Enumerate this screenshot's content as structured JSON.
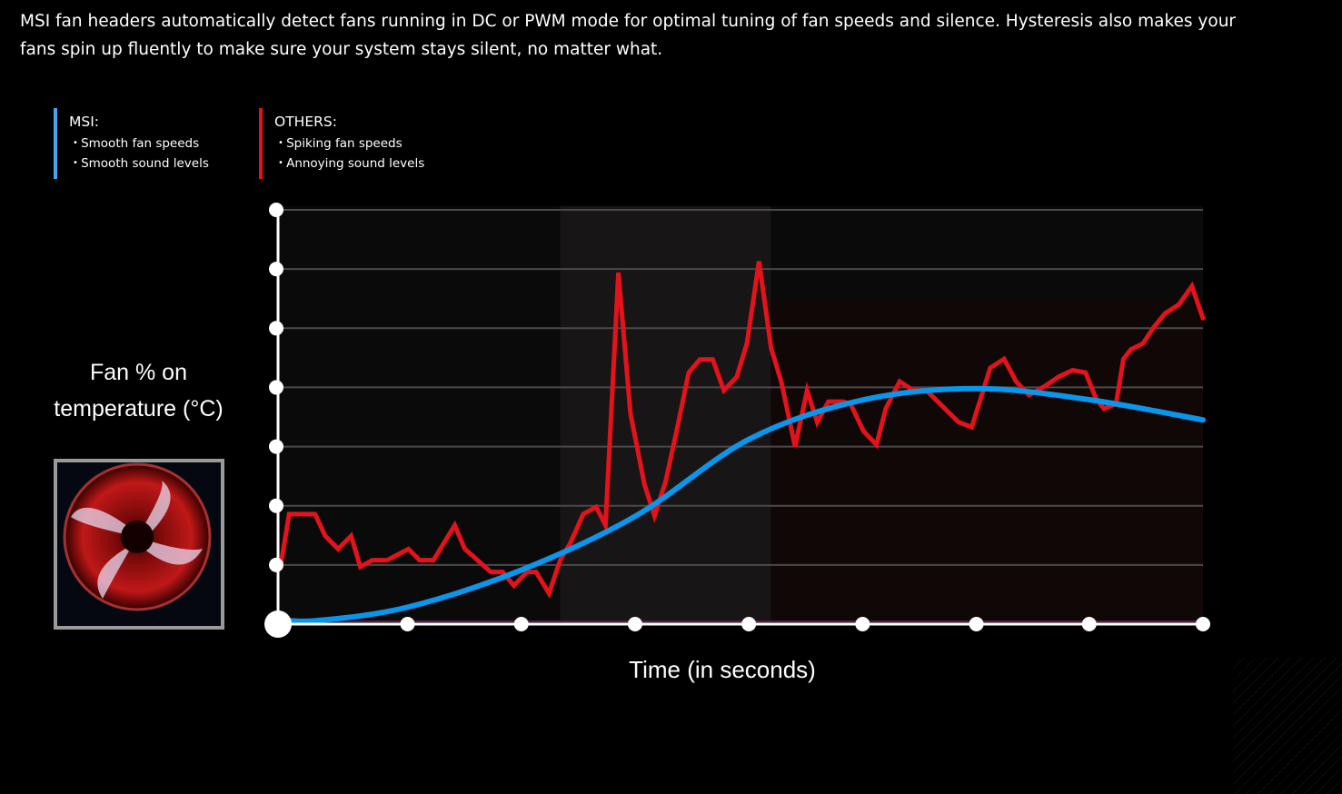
{
  "intro_text": "MSI fan headers automatically detect fans running in DC or PWM mode for optimal tuning of fan speeds and silence. Hysteresis also makes your fans spin up fluently to make sure your system stays silent, no matter what.",
  "legend": {
    "msi": {
      "title": "MSI:",
      "items": [
        "Smooth fan speeds",
        "Smooth sound levels"
      ],
      "color": "#4aa3f0"
    },
    "others": {
      "title": "OTHERS:",
      "items": [
        "Spiking fan speeds",
        "Annoying sound levels"
      ],
      "color": "#e3131b"
    }
  },
  "fan_image": "fan-icon",
  "chart_data": {
    "type": "line",
    "title": "",
    "xlabel": "Time (in seconds)",
    "ylabel": "Fan % on temperature (°C)",
    "xlim": [
      0,
      100
    ],
    "ylim": [
      0,
      7
    ],
    "grid": true,
    "x_ticks": [
      0,
      14,
      26.3,
      38.6,
      50.9,
      63.2,
      75.5,
      87.7,
      100
    ],
    "y_ticks": [
      0,
      1,
      2,
      3,
      4,
      5,
      6,
      7
    ],
    "highlight_band": [
      30.5,
      53.3
    ],
    "series": [
      {
        "name": "OTHERS",
        "color": "#e3131b",
        "x": [
          0.3,
          1.2,
          4.0,
          5.1,
          6.5,
          7.9,
          8.9,
          10.2,
          11.8,
          14.1,
          15.3,
          16.8,
          19.1,
          20.2,
          23.0,
          24.3,
          25.5,
          26.9,
          27.9,
          29.3,
          30.5,
          31.6,
          33.0,
          34.4,
          35.4,
          36.8,
          38.1,
          39.6,
          40.7,
          41.9,
          43.1,
          44.4,
          45.6,
          47.0,
          48.2,
          49.6,
          50.7,
          52.0,
          53.3,
          54.4,
          55.9,
          57.2,
          58.3,
          59.5,
          61.1,
          61.9,
          63.3,
          64.7,
          65.7,
          67.2,
          68.7,
          70.1,
          72.1,
          73.6,
          75.0,
          77.0,
          78.5,
          79.8,
          81.2,
          82.9,
          84.4,
          85.9,
          87.3,
          88.5,
          89.3,
          90.6,
          91.4,
          92.2,
          93.5,
          94.7,
          95.9,
          97.4,
          98.8,
          100
        ],
        "y": [
          1.0,
          1.86,
          1.86,
          1.49,
          1.27,
          1.49,
          0.97,
          1.08,
          1.08,
          1.27,
          1.08,
          1.08,
          1.67,
          1.27,
          0.88,
          0.88,
          0.65,
          0.88,
          0.88,
          0.52,
          1.08,
          1.37,
          1.86,
          1.98,
          1.67,
          5.94,
          3.56,
          2.37,
          1.83,
          2.41,
          3.27,
          4.25,
          4.47,
          4.47,
          3.95,
          4.18,
          4.75,
          6.13,
          4.67,
          4.1,
          3.0,
          3.95,
          3.41,
          3.76,
          3.76,
          3.72,
          3.26,
          3.03,
          3.64,
          4.1,
          3.95,
          3.95,
          3.64,
          3.41,
          3.33,
          4.33,
          4.48,
          4.1,
          3.87,
          4.02,
          4.18,
          4.29,
          4.25,
          3.79,
          3.64,
          3.72,
          4.48,
          4.64,
          4.74,
          5.02,
          5.25,
          5.4,
          5.71,
          5.17
        ]
      },
      {
        "name": "MSI",
        "color": "#0a96ea",
        "x": [
          0,
          4.3,
          14.1,
          26.4,
          38.7,
          51.0,
          63.3,
          75.6,
          87.8,
          100
        ],
        "y": [
          0.08,
          0.06,
          0.29,
          0.92,
          1.83,
          3.13,
          3.79,
          3.98,
          3.79,
          3.45
        ]
      }
    ]
  }
}
